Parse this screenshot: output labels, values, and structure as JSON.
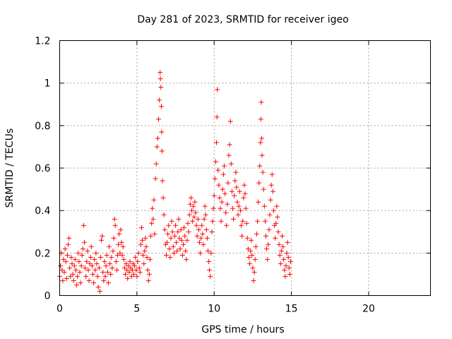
{
  "chart_data": {
    "type": "scatter",
    "title": "Day 281 of 2023, SRMTID for receiver igeo",
    "xlabel": "GPS time / hours",
    "ylabel": "SRMTID / TECUs",
    "xlim": [
      0,
      24
    ],
    "ylim": [
      0,
      1.2
    ],
    "x_ticks": [
      0,
      5,
      10,
      15,
      20
    ],
    "x_tick_labels": [
      "0",
      "5",
      "10",
      "15",
      "20"
    ],
    "y_ticks": [
      0,
      0.2,
      0.4,
      0.6,
      0.8,
      1,
      1.2
    ],
    "y_tick_labels": [
      "0",
      "0.2",
      "0.4",
      "0.6",
      "0.8",
      "1",
      "1.2"
    ],
    "grid": true,
    "marker": "+",
    "marker_color": "#ff0000",
    "series": [
      {
        "name": "SRMTID",
        "data_span_hours": [
          0,
          15
        ],
        "points": [
          [
            0.0,
            0.09
          ],
          [
            0.05,
            0.14
          ],
          [
            0.1,
            0.2
          ],
          [
            0.15,
            0.12
          ],
          [
            0.2,
            0.07
          ],
          [
            0.25,
            0.17
          ],
          [
            0.3,
            0.11
          ],
          [
            0.35,
            0.22
          ],
          [
            0.4,
            0.16
          ],
          [
            0.45,
            0.08
          ],
          [
            0.5,
            0.19
          ],
          [
            0.55,
            0.24
          ],
          [
            0.6,
            0.27
          ],
          [
            0.65,
            0.13
          ],
          [
            0.7,
            0.09
          ],
          [
            0.75,
            0.18
          ],
          [
            0.8,
            0.15
          ],
          [
            0.85,
            0.1
          ],
          [
            0.9,
            0.07
          ],
          [
            0.95,
            0.14
          ],
          [
            1.0,
            0.17
          ],
          [
            1.05,
            0.12
          ],
          [
            1.1,
            0.05
          ],
          [
            1.15,
            0.09
          ],
          [
            1.2,
            0.2
          ],
          [
            1.25,
            0.16
          ],
          [
            1.3,
            0.11
          ],
          [
            1.35,
            0.06
          ],
          [
            1.4,
            0.14
          ],
          [
            1.45,
            0.19
          ],
          [
            1.5,
            0.22
          ],
          [
            1.55,
            0.33
          ],
          [
            1.6,
            0.25
          ],
          [
            1.65,
            0.13
          ],
          [
            1.7,
            0.09
          ],
          [
            1.75,
            0.16
          ],
          [
            1.8,
            0.21
          ],
          [
            1.85,
            0.12
          ],
          [
            1.9,
            0.07
          ],
          [
            1.95,
            0.15
          ],
          [
            2.0,
            0.18
          ],
          [
            2.05,
            0.23
          ],
          [
            2.1,
            0.14
          ],
          [
            2.15,
            0.1
          ],
          [
            2.2,
            0.06
          ],
          [
            2.25,
            0.17
          ],
          [
            2.3,
            0.12
          ],
          [
            2.35,
            0.2
          ],
          [
            2.4,
            0.15
          ],
          [
            2.45,
            0.09
          ],
          [
            2.5,
            0.04
          ],
          [
            2.55,
            0.13
          ],
          [
            2.6,
            0.02
          ],
          [
            2.65,
            0.18
          ],
          [
            2.7,
            0.26
          ],
          [
            2.75,
            0.28
          ],
          [
            2.8,
            0.11
          ],
          [
            2.85,
            0.07
          ],
          [
            2.9,
            0.16
          ],
          [
            2.95,
            0.09
          ],
          [
            3.0,
            0.14
          ],
          [
            3.05,
            0.19
          ],
          [
            3.1,
            0.11
          ],
          [
            3.15,
            0.06
          ],
          [
            3.2,
            0.23
          ],
          [
            3.25,
            0.15
          ],
          [
            3.3,
            0.1
          ],
          [
            3.35,
            0.18
          ],
          [
            3.4,
            0.13
          ],
          [
            3.45,
            0.21
          ],
          [
            3.5,
            0.27
          ],
          [
            3.55,
            0.36
          ],
          [
            3.6,
            0.33
          ],
          [
            3.65,
            0.16
          ],
          [
            3.7,
            0.12
          ],
          [
            3.75,
            0.19
          ],
          [
            3.8,
            0.24
          ],
          [
            3.85,
            0.29
          ],
          [
            3.9,
            0.2
          ],
          [
            3.95,
            0.31
          ],
          [
            4.0,
            0.25
          ],
          [
            4.05,
            0.19
          ],
          [
            4.1,
            0.23
          ],
          [
            4.15,
            0.17
          ],
          [
            4.2,
            0.13
          ],
          [
            4.25,
            0.1
          ],
          [
            4.3,
            0.15
          ],
          [
            4.35,
            0.12
          ],
          [
            4.4,
            0.08
          ],
          [
            4.45,
            0.14
          ],
          [
            4.5,
            0.11
          ],
          [
            4.55,
            0.16
          ],
          [
            4.6,
            0.13
          ],
          [
            4.65,
            0.09
          ],
          [
            4.7,
            0.12
          ],
          [
            4.75,
            0.15
          ],
          [
            4.8,
            0.1
          ],
          [
            4.85,
            0.14
          ],
          [
            4.9,
            0.18
          ],
          [
            4.95,
            0.12
          ],
          [
            5.0,
            0.09
          ],
          [
            5.05,
            0.16
          ],
          [
            5.1,
            0.2
          ],
          [
            5.15,
            0.13
          ],
          [
            5.2,
            0.11
          ],
          [
            5.25,
            0.24
          ],
          [
            5.3,
            0.32
          ],
          [
            5.35,
            0.26
          ],
          [
            5.4,
            0.19
          ],
          [
            5.45,
            0.15
          ],
          [
            5.5,
            0.21
          ],
          [
            5.55,
            0.27
          ],
          [
            5.6,
            0.23
          ],
          [
            5.65,
            0.18
          ],
          [
            5.7,
            0.12
          ],
          [
            5.75,
            0.07
          ],
          [
            5.8,
            0.1
          ],
          [
            5.85,
            0.17
          ],
          [
            5.9,
            0.28
          ],
          [
            5.95,
            0.34
          ],
          [
            6.0,
            0.41
          ],
          [
            6.05,
            0.36
          ],
          [
            6.1,
            0.45
          ],
          [
            6.15,
            0.29
          ],
          [
            6.2,
            0.55
          ],
          [
            6.25,
            0.62
          ],
          [
            6.3,
            0.7
          ],
          [
            6.35,
            0.74
          ],
          [
            6.4,
            0.83
          ],
          [
            6.45,
            0.92
          ],
          [
            6.5,
            1.05
          ],
          [
            6.52,
            1.02
          ],
          [
            6.55,
            0.98
          ],
          [
            6.58,
            0.89
          ],
          [
            6.6,
            0.77
          ],
          [
            6.62,
            0.68
          ],
          [
            6.65,
            0.54
          ],
          [
            6.7,
            0.46
          ],
          [
            6.75,
            0.38
          ],
          [
            6.8,
            0.31
          ],
          [
            6.85,
            0.24
          ],
          [
            6.9,
            0.19
          ],
          [
            6.95,
            0.25
          ],
          [
            7.0,
            0.29
          ],
          [
            7.05,
            0.33
          ],
          [
            7.1,
            0.22
          ],
          [
            7.15,
            0.18
          ],
          [
            7.2,
            0.27
          ],
          [
            7.25,
            0.35
          ],
          [
            7.3,
            0.3
          ],
          [
            7.35,
            0.23
          ],
          [
            7.4,
            0.2
          ],
          [
            7.45,
            0.28
          ],
          [
            7.5,
            0.33
          ],
          [
            7.55,
            0.25
          ],
          [
            7.6,
            0.21
          ],
          [
            7.65,
            0.3
          ],
          [
            7.7,
            0.36
          ],
          [
            7.75,
            0.27
          ],
          [
            7.8,
            0.22
          ],
          [
            7.85,
            0.31
          ],
          [
            7.9,
            0.26
          ],
          [
            7.95,
            0.19
          ],
          [
            8.0,
            0.24
          ],
          [
            8.05,
            0.32
          ],
          [
            8.1,
            0.28
          ],
          [
            8.15,
            0.21
          ],
          [
            8.2,
            0.17
          ],
          [
            8.25,
            0.26
          ],
          [
            8.3,
            0.34
          ],
          [
            8.35,
            0.3
          ],
          [
            8.4,
            0.38
          ],
          [
            8.45,
            0.43
          ],
          [
            8.5,
            0.46
          ],
          [
            8.55,
            0.4
          ],
          [
            8.6,
            0.35
          ],
          [
            8.65,
            0.42
          ],
          [
            8.7,
            0.37
          ],
          [
            8.75,
            0.44
          ],
          [
            8.8,
            0.39
          ],
          [
            8.85,
            0.33
          ],
          [
            8.9,
            0.28
          ],
          [
            8.95,
            0.36
          ],
          [
            9.0,
            0.31
          ],
          [
            9.05,
            0.25
          ],
          [
            9.1,
            0.2
          ],
          [
            9.15,
            0.27
          ],
          [
            9.2,
            0.33
          ],
          [
            9.25,
            0.29
          ],
          [
            9.3,
            0.24
          ],
          [
            9.35,
            0.36
          ],
          [
            9.4,
            0.42
          ],
          [
            9.45,
            0.38
          ],
          [
            9.5,
            0.31
          ],
          [
            9.55,
            0.27
          ],
          [
            9.6,
            0.21
          ],
          [
            9.65,
            0.16
          ],
          [
            9.7,
            0.12
          ],
          [
            9.75,
            0.09
          ],
          [
            9.8,
            0.2
          ],
          [
            9.85,
            0.3
          ],
          [
            9.9,
            0.35
          ],
          [
            9.95,
            0.41
          ],
          [
            10.0,
            0.47
          ],
          [
            10.05,
            0.55
          ],
          [
            10.1,
            0.63
          ],
          [
            10.15,
            0.72
          ],
          [
            10.18,
            0.84
          ],
          [
            10.2,
            0.97
          ],
          [
            10.25,
            0.59
          ],
          [
            10.3,
            0.52
          ],
          [
            10.35,
            0.46
          ],
          [
            10.4,
            0.41
          ],
          [
            10.45,
            0.35
          ],
          [
            10.5,
            0.44
          ],
          [
            10.55,
            0.5
          ],
          [
            10.6,
            0.57
          ],
          [
            10.65,
            0.61
          ],
          [
            10.7,
            0.48
          ],
          [
            10.75,
            0.39
          ],
          [
            10.8,
            0.33
          ],
          [
            10.85,
            0.43
          ],
          [
            10.9,
            0.53
          ],
          [
            10.95,
            0.66
          ],
          [
            11.0,
            0.71
          ],
          [
            11.05,
            0.82
          ],
          [
            11.1,
            0.62
          ],
          [
            11.15,
            0.49
          ],
          [
            11.2,
            0.41
          ],
          [
            11.25,
            0.36
          ],
          [
            11.3,
            0.47
          ],
          [
            11.35,
            0.54
          ],
          [
            11.4,
            0.58
          ],
          [
            11.45,
            0.51
          ],
          [
            11.5,
            0.44
          ],
          [
            11.55,
            0.38
          ],
          [
            11.6,
            0.42
          ],
          [
            11.65,
            0.49
          ],
          [
            11.7,
            0.4
          ],
          [
            11.75,
            0.33
          ],
          [
            11.8,
            0.28
          ],
          [
            11.85,
            0.35
          ],
          [
            11.9,
            0.46
          ],
          [
            11.95,
            0.52
          ],
          [
            12.0,
            0.48
          ],
          [
            12.05,
            0.41
          ],
          [
            12.1,
            0.34
          ],
          [
            12.15,
            0.27
          ],
          [
            12.2,
            0.22
          ],
          [
            12.25,
            0.18
          ],
          [
            12.3,
            0.15
          ],
          [
            12.35,
            0.21
          ],
          [
            12.4,
            0.26
          ],
          [
            12.45,
            0.19
          ],
          [
            12.5,
            0.13
          ],
          [
            12.55,
            0.07
          ],
          [
            12.6,
            0.11
          ],
          [
            12.65,
            0.17
          ],
          [
            12.7,
            0.23
          ],
          [
            12.75,
            0.29
          ],
          [
            12.8,
            0.35
          ],
          [
            12.85,
            0.44
          ],
          [
            12.9,
            0.53
          ],
          [
            12.95,
            0.61
          ],
          [
            13.0,
            0.72
          ],
          [
            13.02,
            0.83
          ],
          [
            13.05,
            0.91
          ],
          [
            13.08,
            0.74
          ],
          [
            13.1,
            0.66
          ],
          [
            13.15,
            0.58
          ],
          [
            13.2,
            0.5
          ],
          [
            13.25,
            0.42
          ],
          [
            13.3,
            0.35
          ],
          [
            13.35,
            0.28
          ],
          [
            13.4,
            0.22
          ],
          [
            13.45,
            0.17
          ],
          [
            13.5,
            0.24
          ],
          [
            13.55,
            0.31
          ],
          [
            13.6,
            0.38
          ],
          [
            13.65,
            0.45
          ],
          [
            13.7,
            0.52
          ],
          [
            13.75,
            0.57
          ],
          [
            13.8,
            0.49
          ],
          [
            13.85,
            0.4
          ],
          [
            13.9,
            0.33
          ],
          [
            13.95,
            0.27
          ],
          [
            14.0,
            0.34
          ],
          [
            14.05,
            0.42
          ],
          [
            14.1,
            0.37
          ],
          [
            14.15,
            0.3
          ],
          [
            14.2,
            0.24
          ],
          [
            14.25,
            0.19
          ],
          [
            14.3,
            0.15
          ],
          [
            14.35,
            0.21
          ],
          [
            14.4,
            0.28
          ],
          [
            14.45,
            0.23
          ],
          [
            14.5,
            0.17
          ],
          [
            14.55,
            0.12
          ],
          [
            14.6,
            0.09
          ],
          [
            14.65,
            0.14
          ],
          [
            14.7,
            0.2
          ],
          [
            14.75,
            0.25
          ],
          [
            14.8,
            0.18
          ],
          [
            14.85,
            0.13
          ],
          [
            14.9,
            0.1
          ],
          [
            14.95,
            0.16
          ]
        ]
      }
    ]
  }
}
